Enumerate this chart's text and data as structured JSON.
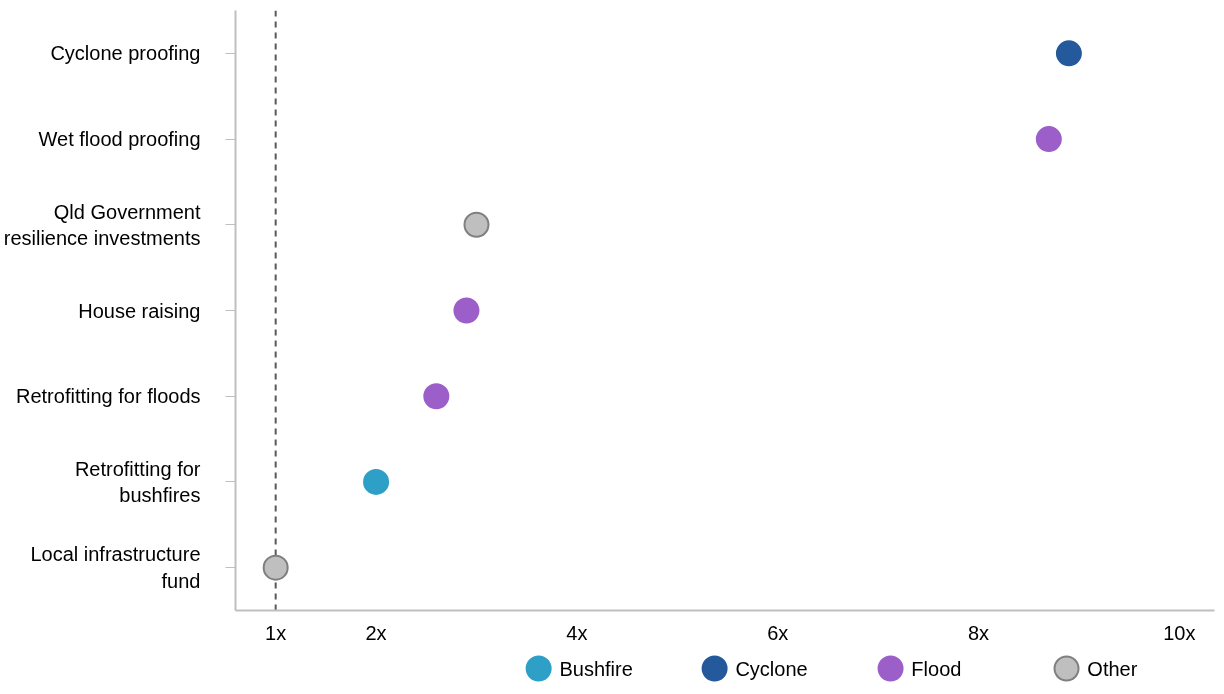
{
  "chart_data": {
    "type": "scatter",
    "orientation": "horizontal",
    "categories": [
      "Cyclone proofing",
      "Wet flood proofing",
      "Qld Government resilience investments",
      "House raising",
      "Retrofitting for floods",
      "Retrofitting for bushfires",
      "Local infrastructure fund"
    ],
    "series": [
      {
        "name": "Bushfire",
        "color": "#2e9fc6",
        "values": [
          null,
          null,
          null,
          null,
          null,
          2.0,
          null
        ]
      },
      {
        "name": "Cyclone",
        "color": "#245a9c",
        "values": [
          8.9,
          null,
          null,
          null,
          null,
          null,
          null
        ]
      },
      {
        "name": "Flood",
        "color": "#9c5fc9",
        "values": [
          null,
          8.7,
          null,
          2.9,
          2.6,
          null,
          null
        ]
      },
      {
        "name": "Other",
        "color": "#bfbfbf",
        "values": [
          null,
          null,
          3.0,
          null,
          null,
          null,
          1.0
        ]
      }
    ],
    "xlim": [
      0.6,
      10.35
    ],
    "xticks": [
      {
        "value": 1,
        "label": "1x"
      },
      {
        "value": 2,
        "label": "2x"
      },
      {
        "value": 4,
        "label": "4x"
      },
      {
        "value": 6,
        "label": "6x"
      },
      {
        "value": 8,
        "label": "8x"
      },
      {
        "value": 10,
        "label": "10x"
      }
    ],
    "ref_lines": [
      {
        "axis": "x",
        "value": 1,
        "color": "#595959",
        "line_style": "dashed"
      }
    ],
    "grid": false,
    "legend": "bottom",
    "marker": "circle"
  }
}
